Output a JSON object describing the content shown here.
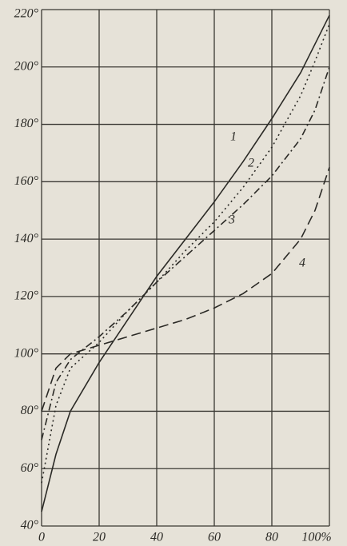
{
  "chart_data": {
    "type": "line",
    "x": [
      0,
      5,
      10,
      20,
      30,
      40,
      50,
      60,
      70,
      80,
      90,
      95,
      100
    ],
    "series": [
      {
        "name": "1",
        "color": "#2b2a26",
        "style": "solid",
        "values": [
          45,
          65,
          80,
          97,
          112,
          127,
          140,
          153,
          167,
          182,
          198,
          208,
          218
        ]
      },
      {
        "name": "2",
        "color": "#2b2a26",
        "style": "dotted",
        "values": [
          55,
          82,
          95,
          104,
          115,
          125,
          136,
          146,
          158,
          172,
          190,
          202,
          215
        ]
      },
      {
        "name": "3",
        "color": "#2b2a26",
        "style": "dashdot",
        "values": [
          70,
          90,
          98,
          106,
          115,
          125,
          134,
          143,
          152,
          162,
          175,
          185,
          200
        ]
      },
      {
        "name": "4",
        "color": "#2b2a26",
        "style": "dashed",
        "values": [
          80,
          95,
          100,
          103,
          106,
          109,
          112,
          116,
          121,
          128,
          140,
          150,
          165
        ]
      }
    ],
    "xlim": [
      0,
      100
    ],
    "xticks": [
      0,
      20,
      40,
      60,
      80,
      {
        "value": 100,
        "label": "100%"
      }
    ],
    "ylim": [
      40,
      220
    ],
    "yticks": [
      {
        "value": 40,
        "label": "40°"
      },
      {
        "value": 60,
        "label": "60°"
      },
      {
        "value": 80,
        "label": "80°"
      },
      {
        "value": 100,
        "label": "100°"
      },
      {
        "value": 120,
        "label": "120°"
      },
      {
        "value": 140,
        "label": "140°"
      },
      {
        "value": 160,
        "label": "160°"
      },
      {
        "value": 180,
        "label": "180°"
      },
      {
        "value": 200,
        "label": "200°"
      },
      {
        "value": 220,
        "label": "220°"
      }
    ],
    "grid": true
  }
}
